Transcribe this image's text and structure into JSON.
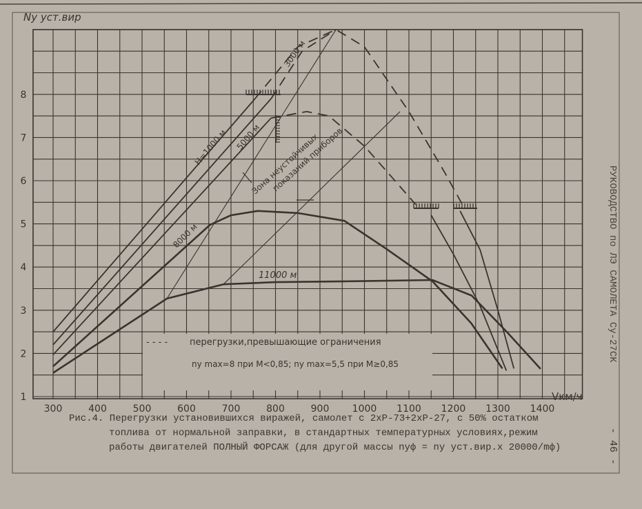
{
  "chart_data": {
    "type": "line",
    "ylabel": "Ny уст.вир",
    "xlabel": "Vкм/ч",
    "xlim": [
      255,
      1490
    ],
    "ylim": [
      0.95,
      9.5
    ],
    "grid": true,
    "x_ticks": [
      "300",
      "400",
      "500",
      "600",
      "700",
      "800",
      "900",
      "1000",
      "1100",
      "1200",
      "1300",
      "1400"
    ],
    "y_ticks": [
      "1",
      "2",
      "3",
      "4",
      "5",
      "6",
      "7",
      "8"
    ],
    "ink_color": "#3a332e",
    "paper_color": "#b8b2a9",
    "series": [
      {
        "name": "H=1000 м",
        "style": "solid",
        "points": [
          [
            300,
            2.5
          ],
          [
            754,
            7.9
          ]
        ]
      },
      {
        "name": "3000 м",
        "style": "solid",
        "points": [
          [
            300,
            2.2
          ],
          [
            790,
            7.9
          ]
        ]
      },
      {
        "name": "5000 м",
        "style": "solid",
        "points": [
          [
            300,
            1.97
          ],
          [
            790,
            7.45
          ]
        ]
      },
      {
        "name": "8000 м",
        "style": "solid-thick",
        "points": [
          [
            300,
            1.7
          ],
          [
            653,
            4.98
          ],
          [
            700,
            5.2
          ],
          [
            760,
            5.3
          ],
          [
            850,
            5.25
          ],
          [
            955,
            5.07
          ],
          [
            1048,
            4.43
          ],
          [
            1153,
            3.67
          ],
          [
            1240,
            2.7
          ],
          [
            1310,
            1.65
          ]
        ]
      },
      {
        "name": "11000 м",
        "style": "solid-thick",
        "points": [
          [
            300,
            1.55
          ],
          [
            556,
            3.27
          ],
          [
            683,
            3.6
          ],
          [
            800,
            3.65
          ],
          [
            955,
            3.67
          ],
          [
            1153,
            3.7
          ],
          [
            1241,
            3.34
          ],
          [
            1320,
            2.5
          ],
          [
            1396,
            1.64
          ]
        ]
      },
      {
        "style": "dashed",
        "points": [
          [
            754,
            7.9
          ],
          [
            850,
            9.1
          ],
          [
            936,
            9.5
          ],
          [
            1000,
            9.1
          ],
          [
            1100,
            7.6
          ],
          [
            1180,
            6.2
          ],
          [
            1220,
            5.45
          ]
        ]
      },
      {
        "style": "dashed",
        "points": [
          [
            790,
            7.9
          ],
          [
            860,
            9.0
          ],
          [
            936,
            9.5
          ]
        ]
      },
      {
        "style": "dashed",
        "points": [
          [
            790,
            7.45
          ],
          [
            870,
            7.6
          ],
          [
            920,
            7.5
          ],
          [
            1000,
            6.8
          ],
          [
            1060,
            6.1
          ],
          [
            1115,
            5.45
          ]
        ]
      },
      {
        "style": "solid",
        "points": [
          [
            1215,
            5.3
          ],
          [
            1260,
            4.4
          ],
          [
            1300,
            3.0
          ],
          [
            1336,
            1.65
          ]
        ]
      },
      {
        "style": "solid",
        "points": [
          [
            1150,
            5.2
          ],
          [
            1200,
            4.3
          ],
          [
            1260,
            3.1
          ],
          [
            1319,
            1.6
          ]
        ]
      },
      {
        "style": "thin",
        "points": [
          [
            556,
            3.27
          ],
          [
            936,
            9.5
          ]
        ]
      },
      {
        "style": "thin",
        "points": [
          [
            683,
            3.6
          ],
          [
            1080,
            7.6
          ]
        ]
      }
    ],
    "annotations": {
      "h1000": "H=1000 м",
      "h3000": "3000 м",
      "h5000": "5000 м",
      "h8000": "8000 м",
      "h11000": "11000 м",
      "zone_line1": "Зона неустойчивых",
      "zone_line2": "показаний приборов",
      "legend_dash": "- - - -",
      "legend_text": "перегрузки,превышающие ограничения",
      "limit_text": "nу max=8 при M<0,85; nу max=5,5 при M≥0,85"
    }
  },
  "caption": {
    "line1": "Рис.4. Перегрузки установившихся виражей, самолет с 2хР-73+2хР-27, с 50% остатком",
    "line2": "топлива от нормальной заправки, в стандартных температурных условиях,режим",
    "line3": "работы двигателей ПОЛНЫЙ ФОРСАЖ (для другой массы  nуф = nу уст.вир.х 20000/mф)"
  },
  "side_header": "РУКОВОДСТВО по ЛЭ САМОЛЕТА Су-27СК",
  "page_number": "- 46 -"
}
